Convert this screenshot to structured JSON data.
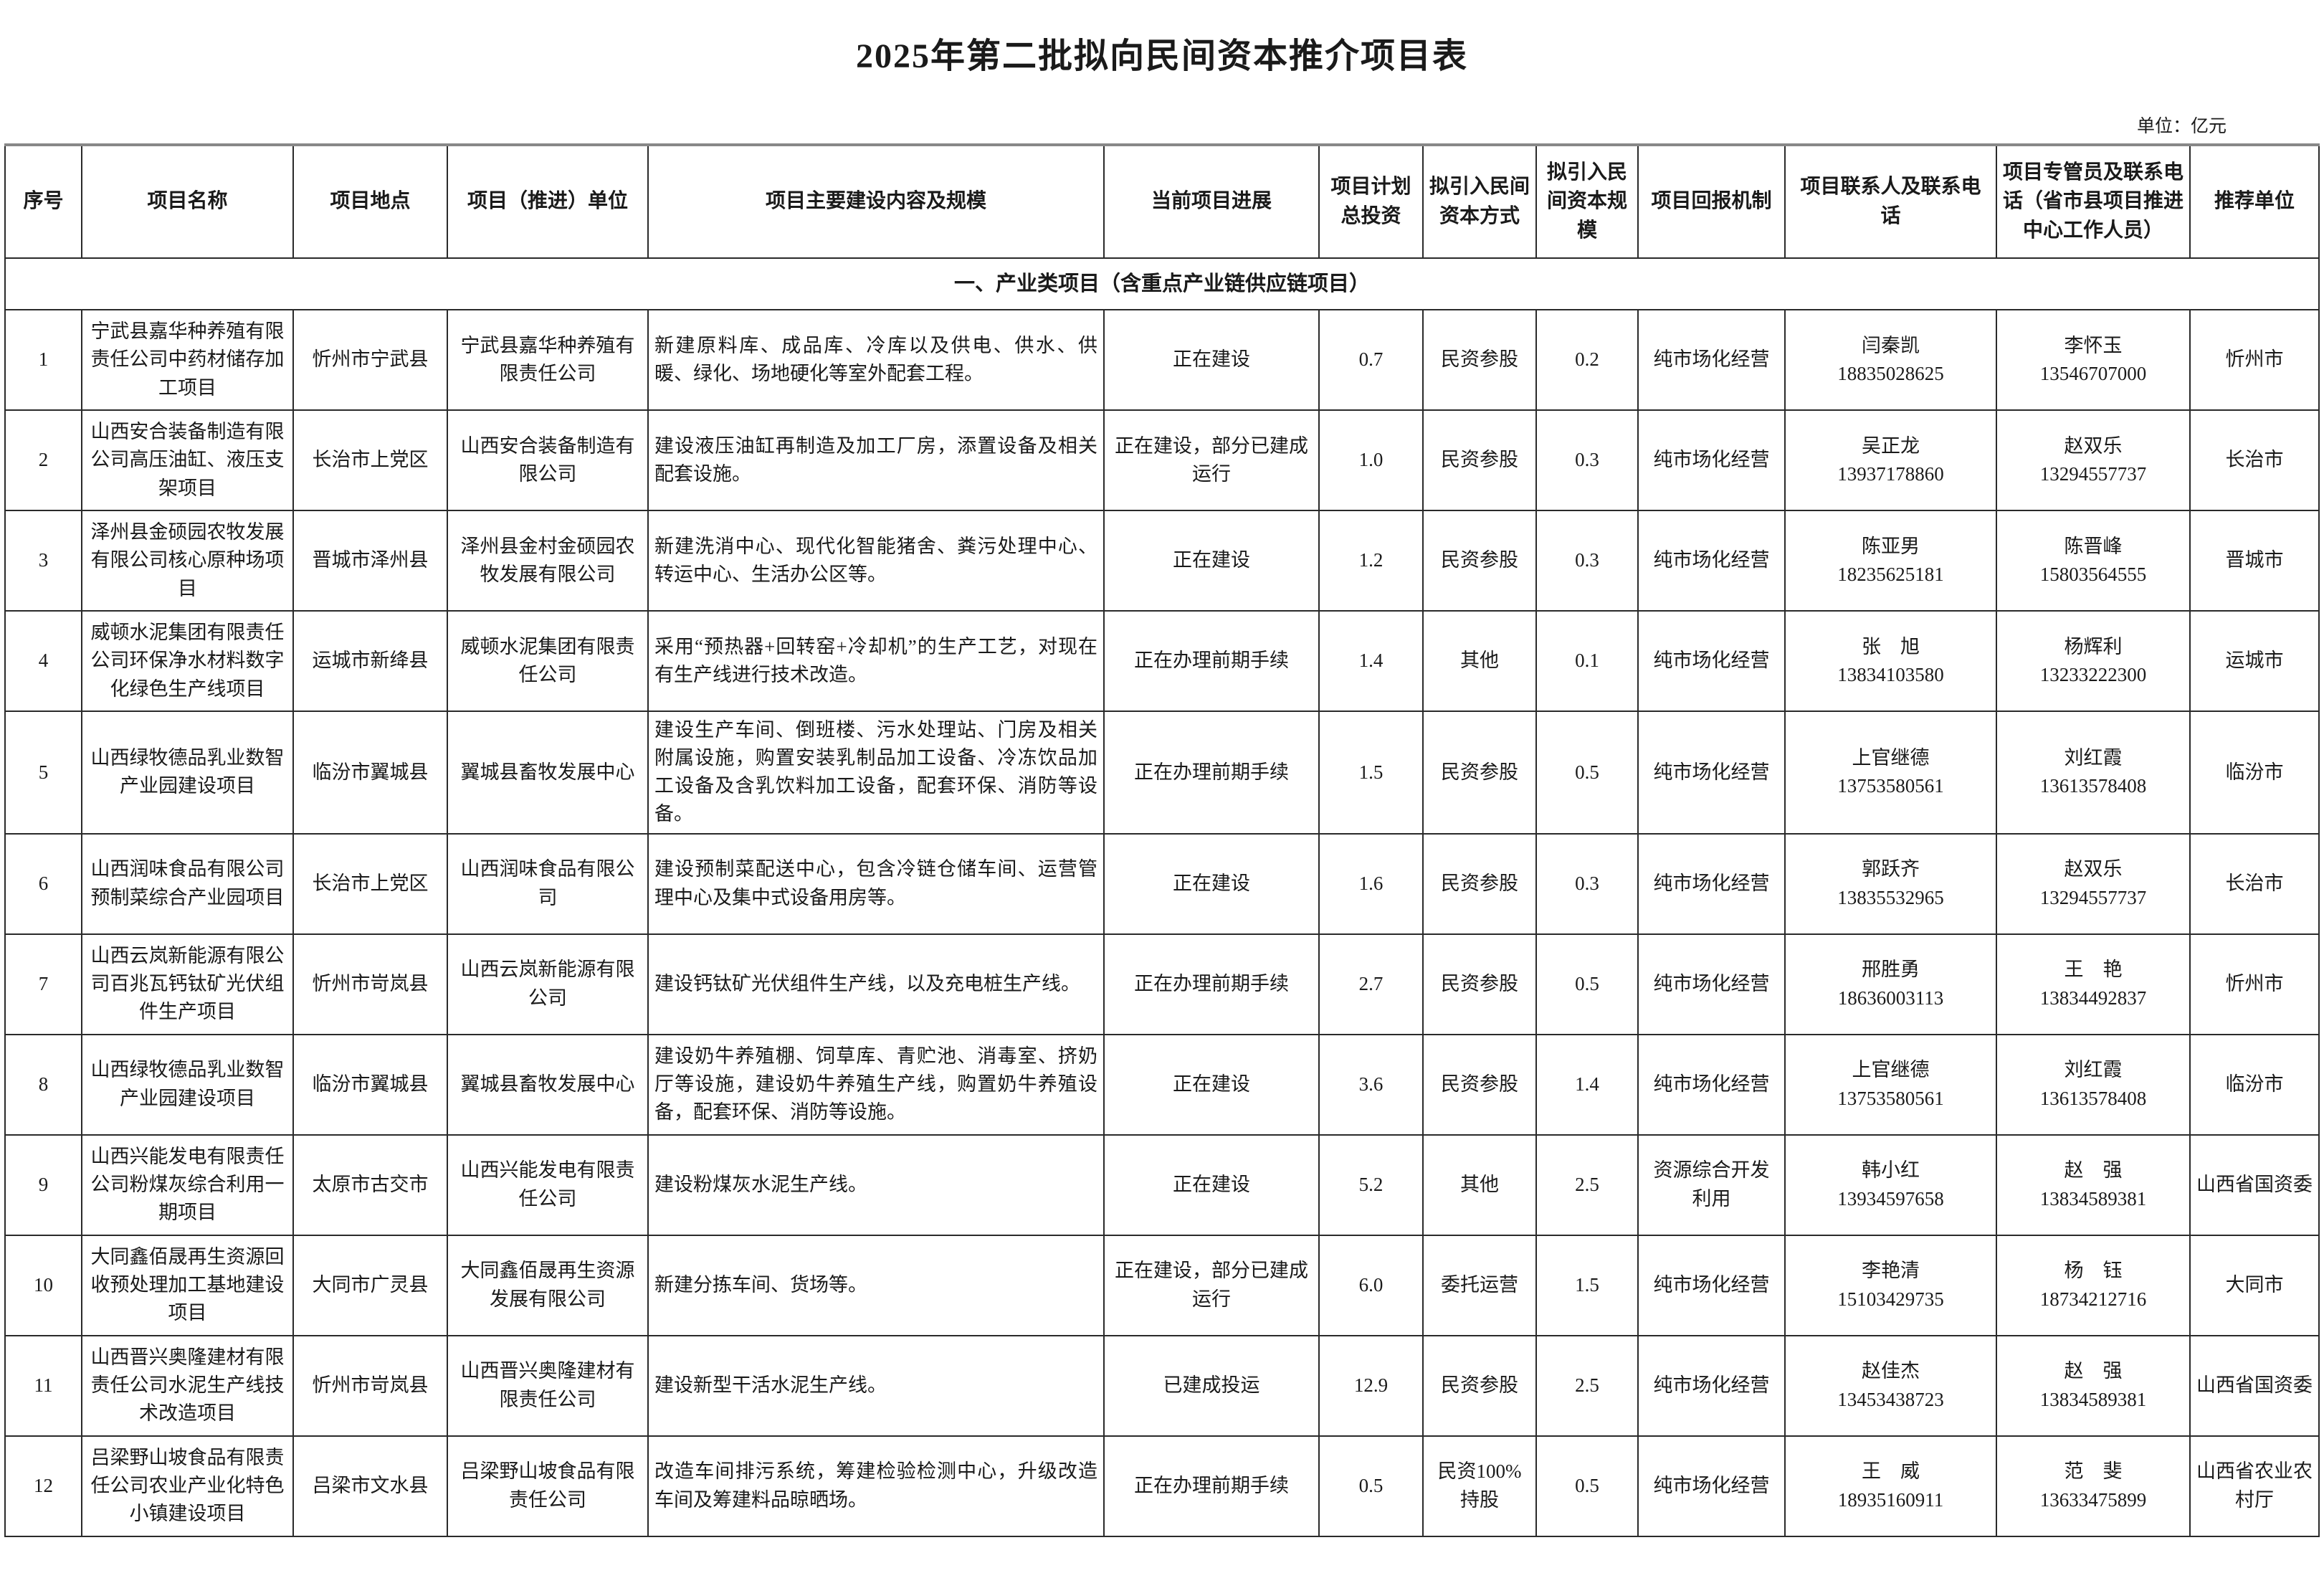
{
  "title": "2025年第二批拟向民间资本推介项目表",
  "unit_note": "单位：亿元",
  "section_header": "一、产业类项目（含重点产业链供应链项目）",
  "columns": [
    "序号",
    "项目名称",
    "项目地点",
    "项目（推进）单位",
    "项目主要建设内容及规模",
    "当前项目进展",
    "项目计划总投资",
    "拟引入民间资本方式",
    "拟引入民间资本规模",
    "项目回报机制",
    "项目联系人及联系电话",
    "项目专管员及联系电话（省市县项目推进中心工作人员）",
    "推荐单位"
  ],
  "rows": [
    {
      "no": "1",
      "name": "宁武县嘉华种养殖有限责任公司中药材储存加工项目",
      "location": "忻州市宁武县",
      "unit": "宁武县嘉华种养殖有限责任公司",
      "content": "新建原料库、成品库、冷库以及供电、供水、供暖、绿化、场地硬化等室外配套工程。",
      "progress": "正在建设",
      "investment": "0.7",
      "method": "民资参股",
      "scale": "0.2",
      "mechanism": "纯市场化经营",
      "contact_name": "闫秦凯",
      "contact_phone": "18835028625",
      "manager_name": "李怀玉",
      "manager_phone": "13546707000",
      "recommender": "忻州市"
    },
    {
      "no": "2",
      "name": "山西安合装备制造有限公司高压油缸、液压支架项目",
      "location": "长治市上党区",
      "unit": "山西安合装备制造有限公司",
      "content": "建设液压油缸再制造及加工厂房，添置设备及相关配套设施。",
      "progress": "正在建设，部分已建成运行",
      "investment": "1.0",
      "method": "民资参股",
      "scale": "0.3",
      "mechanism": "纯市场化经营",
      "contact_name": "吴正龙",
      "contact_phone": "13937178860",
      "manager_name": "赵双乐",
      "manager_phone": "13294557737",
      "recommender": "长治市"
    },
    {
      "no": "3",
      "name": "泽州县金硕园农牧发展有限公司核心原种场项目",
      "location": "晋城市泽州县",
      "unit": "泽州县金村金硕园农牧发展有限公司",
      "content": "新建洗消中心、现代化智能猪舍、粪污处理中心、转运中心、生活办公区等。",
      "progress": "正在建设",
      "investment": "1.2",
      "method": "民资参股",
      "scale": "0.3",
      "mechanism": "纯市场化经营",
      "contact_name": "陈亚男",
      "contact_phone": "18235625181",
      "manager_name": "陈晋峰",
      "manager_phone": "15803564555",
      "recommender": "晋城市"
    },
    {
      "no": "4",
      "name": "威顿水泥集团有限责任公司环保净水材料数字化绿色生产线项目",
      "location": "运城市新绛县",
      "unit": "威顿水泥集团有限责任公司",
      "content": "采用“预热器+回转窑+冷却机”的生产工艺，对现在有生产线进行技术改造。",
      "progress": "正在办理前期手续",
      "investment": "1.4",
      "method": "其他",
      "scale": "0.1",
      "mechanism": "纯市场化经营",
      "contact_name": "张　旭",
      "contact_phone": "13834103580",
      "manager_name": "杨辉利",
      "manager_phone": "13233222300",
      "recommender": "运城市"
    },
    {
      "no": "5",
      "name": "山西绿牧德品乳业数智产业园建设项目",
      "location": "临汾市翼城县",
      "unit": "翼城县畜牧发展中心",
      "content": "建设生产车间、倒班楼、污水处理站、门房及相关附属设施，购置安装乳制品加工设备、冷冻饮品加工设备及含乳饮料加工设备，配套环保、消防等设备。",
      "progress": "正在办理前期手续",
      "investment": "1.5",
      "method": "民资参股",
      "scale": "0.5",
      "mechanism": "纯市场化经营",
      "contact_name": "上官继德",
      "contact_phone": "13753580561",
      "manager_name": "刘红霞",
      "manager_phone": "13613578408",
      "recommender": "临汾市"
    },
    {
      "no": "6",
      "name": "山西润味食品有限公司预制菜综合产业园项目",
      "location": "长治市上党区",
      "unit": "山西润味食品有限公司",
      "content": "建设预制菜配送中心，包含冷链仓储车间、运营管理中心及集中式设备用房等。",
      "progress": "正在建设",
      "investment": "1.6",
      "method": "民资参股",
      "scale": "0.3",
      "mechanism": "纯市场化经营",
      "contact_name": "郭跃齐",
      "contact_phone": "13835532965",
      "manager_name": "赵双乐",
      "manager_phone": "13294557737",
      "recommender": "长治市"
    },
    {
      "no": "7",
      "name": "山西云岚新能源有限公司百兆瓦钙钛矿光伏组件生产项目",
      "location": "忻州市岢岚县",
      "unit": "山西云岚新能源有限公司",
      "content": "建设钙钛矿光伏组件生产线，以及充电桩生产线。",
      "progress": "正在办理前期手续",
      "investment": "2.7",
      "method": "民资参股",
      "scale": "0.5",
      "mechanism": "纯市场化经营",
      "contact_name": "邢胜勇",
      "contact_phone": "18636003113",
      "manager_name": "王　艳",
      "manager_phone": "13834492837",
      "recommender": "忻州市"
    },
    {
      "no": "8",
      "name": "山西绿牧德品乳业数智产业园建设项目",
      "location": "临汾市翼城县",
      "unit": "翼城县畜牧发展中心",
      "content": "建设奶牛养殖棚、饲草库、青贮池、消毒室、挤奶厅等设施，建设奶牛养殖生产线，购置奶牛养殖设备，配套环保、消防等设施。",
      "progress": "正在建设",
      "investment": "3.6",
      "method": "民资参股",
      "scale": "1.4",
      "mechanism": "纯市场化经营",
      "contact_name": "上官继德",
      "contact_phone": "13753580561",
      "manager_name": "刘红霞",
      "manager_phone": "13613578408",
      "recommender": "临汾市"
    },
    {
      "no": "9",
      "name": "山西兴能发电有限责任公司粉煤灰综合利用一期项目",
      "location": "太原市古交市",
      "unit": "山西兴能发电有限责任公司",
      "content": "建设粉煤灰水泥生产线。",
      "progress": "正在建设",
      "investment": "5.2",
      "method": "其他",
      "scale": "2.5",
      "mechanism": "资源综合开发利用",
      "contact_name": "韩小红",
      "contact_phone": "13934597658",
      "manager_name": "赵　强",
      "manager_phone": "13834589381",
      "recommender": "山西省国资委"
    },
    {
      "no": "10",
      "name": "大同鑫佰晟再生资源回收预处理加工基地建设项目",
      "location": "大同市广灵县",
      "unit": "大同鑫佰晟再生资源发展有限公司",
      "content": "新建分拣车间、货场等。",
      "progress": "正在建设，部分已建成运行",
      "investment": "6.0",
      "method": "委托运营",
      "scale": "1.5",
      "mechanism": "纯市场化经营",
      "contact_name": "李艳清",
      "contact_phone": "15103429735",
      "manager_name": "杨　钰",
      "manager_phone": "18734212716",
      "recommender": "大同市"
    },
    {
      "no": "11",
      "name": "山西晋兴奥隆建材有限责任公司水泥生产线技术改造项目",
      "location": "忻州市岢岚县",
      "unit": "山西晋兴奥隆建材有限责任公司",
      "content": "建设新型干活水泥生产线。",
      "progress": "已建成投运",
      "investment": "12.9",
      "method": "民资参股",
      "scale": "2.5",
      "mechanism": "纯市场化经营",
      "contact_name": "赵佳杰",
      "contact_phone": "13453438723",
      "manager_name": "赵　强",
      "manager_phone": "13834589381",
      "recommender": "山西省国资委"
    },
    {
      "no": "12",
      "name": "吕梁野山坡食品有限责任公司农业产业化特色小镇建设项目",
      "location": "吕梁市文水县",
      "unit": "吕梁野山坡食品有限责任公司",
      "content": "改造车间排污系统，筹建检验检测中心，升级改造车间及筹建料品晾晒场。",
      "progress": "正在办理前期手续",
      "investment": "0.5",
      "method": "民资100%持股",
      "scale": "0.5",
      "mechanism": "纯市场化经营",
      "contact_name": "王　威",
      "contact_phone": "18935160911",
      "manager_name": "范　斐",
      "manager_phone": "13633475899",
      "recommender": "山西省农业农村厅"
    }
  ]
}
